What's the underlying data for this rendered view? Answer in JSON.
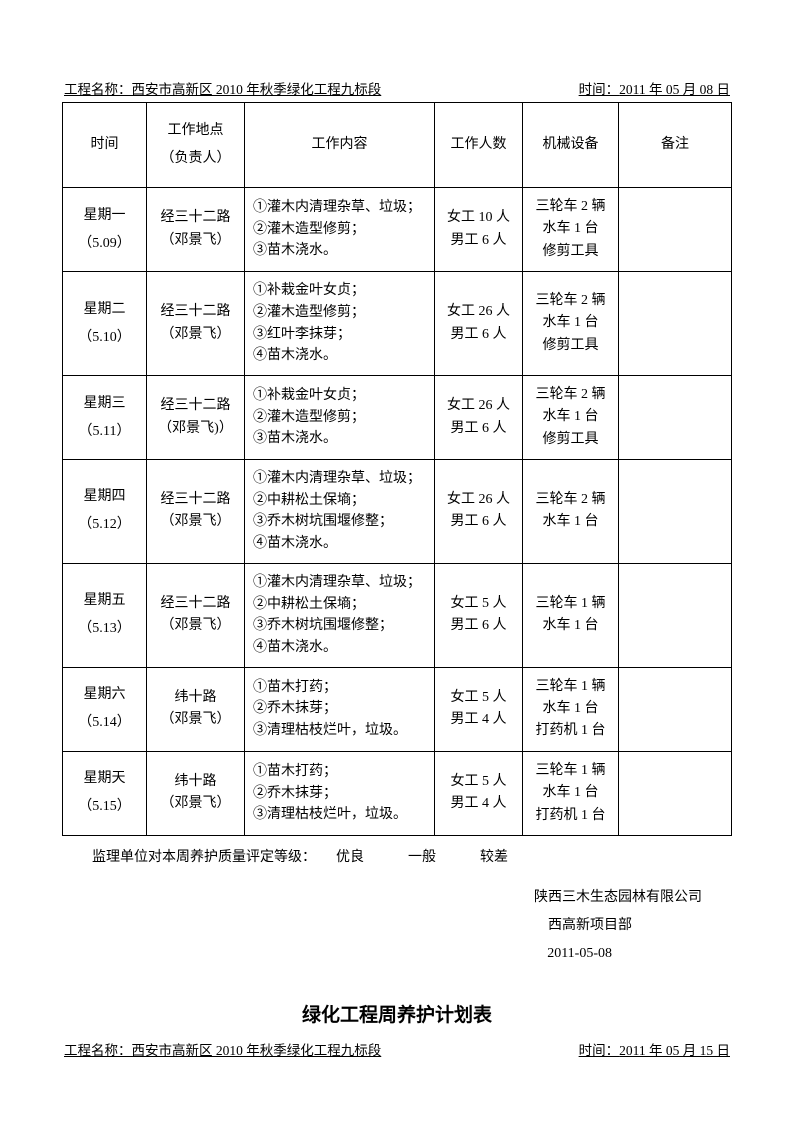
{
  "header1": {
    "project_label": "工程名称：",
    "project_name": "西安市高新区 2010 年秋季绿化工程九标段",
    "time_label": "时间：",
    "time_value": "2011 年 05 月 08 日"
  },
  "columns": {
    "time": "时间",
    "location": "工作地点\n（负责人）",
    "content": "工作内容",
    "workers": "工作人数",
    "equipment": "机械设备",
    "remark": "备注"
  },
  "rows": [
    {
      "day": "星期一",
      "date": "（5.09）",
      "location": "经三十二路\n（邓景飞）",
      "content": "①灌木内清理杂草、垃圾；\n②灌木造型修剪；\n③苗木浇水。",
      "workers": "女工 10 人\n男工 6 人",
      "equipment": "三轮车 2 辆\n水车 1 台\n修剪工具",
      "remark": ""
    },
    {
      "day": "星期二",
      "date": "（5.10）",
      "location": "经三十二路\n（邓景飞）",
      "content": "①补栽金叶女贞；\n②灌木造型修剪；\n③红叶李抹芽；\n④苗木浇水。",
      "workers": "女工 26 人\n男工 6 人",
      "equipment": "三轮车 2 辆\n水车 1 台\n修剪工具",
      "remark": ""
    },
    {
      "day": "星期三",
      "date": "（5.11）",
      "location": "经三十二路\n（邓景飞)）",
      "content": "①补栽金叶女贞；\n②灌木造型修剪；\n③苗木浇水。",
      "workers": "女工 26 人\n男工 6 人",
      "equipment": "三轮车 2 辆\n水车 1 台\n修剪工具",
      "remark": ""
    },
    {
      "day": "星期四",
      "date": "（5.12）",
      "location": "经三十二路\n（邓景飞）",
      "content": "①灌木内清理杂草、垃圾；\n②中耕松土保墒；\n③乔木树坑围堰修整；\n④苗木浇水。",
      "workers": "女工 26 人\n男工 6 人",
      "equipment": "三轮车 2 辆\n水车 1 台",
      "remark": ""
    },
    {
      "day": "星期五",
      "date": "（5.13）",
      "location": "经三十二路\n（邓景飞）",
      "content": "①灌木内清理杂草、垃圾；\n②中耕松土保墒；\n③乔木树坑围堰修整；\n④苗木浇水。",
      "workers": "女工 5 人\n男工 6 人",
      "equipment": "三轮车 1 辆\n水车 1 台",
      "remark": ""
    },
    {
      "day": "星期六",
      "date": "（5.14）",
      "location": "纬十路\n（邓景飞）",
      "content": "①苗木打药；\n②乔木抹芽；\n③清理枯枝烂叶，垃圾。",
      "workers": "女工 5 人\n男工 4 人",
      "equipment": "三轮车 1 辆\n水车 1 台\n打药机 1 台",
      "remark": ""
    },
    {
      "day": "星期天",
      "date": "（5.15）",
      "location": "纬十路\n（邓景飞）",
      "content": "①苗木打药；\n②乔木抹芽；\n③清理枯枝烂叶，垃圾。",
      "workers": "女工 5 人\n男工 4 人",
      "equipment": "三轮车 1 辆\n水车 1 台\n打药机 1 台",
      "remark": ""
    }
  ],
  "rating": {
    "label": "监理单位对本周养护质量评定等级：",
    "opt1": "优良",
    "opt2": "一般",
    "opt3": "较差"
  },
  "signature": {
    "line1": "陕西三木生态园林有限公司",
    "line2": "西高新项目部",
    "line3": "2011-05-08"
  },
  "title2": "绿化工程周养护计划表",
  "header2": {
    "project_label": "工程名称：",
    "project_name": "西安市高新区 2010 年秋季绿化工程九标段",
    "time_label": "时间：",
    "time_value": "2011 年 05 月 15 日"
  }
}
